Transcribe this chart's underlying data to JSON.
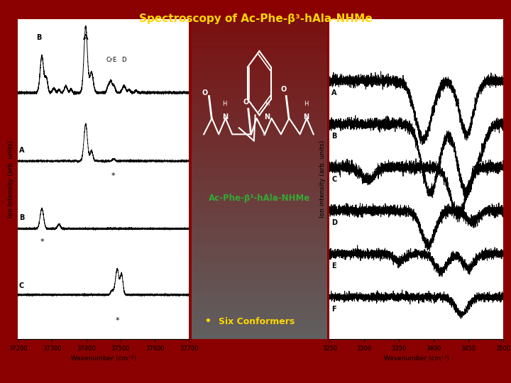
{
  "title": "Spectroscopy of Ac-Phe-β³-hAla-NHMe",
  "title_color": "#FFD700",
  "bg_color": "#8B0000",
  "middle_bg_top": "#7A1010",
  "middle_bg_bot": "#606060",
  "molecule_label": "Ac-Phe-β³-hAla-NHMe",
  "molecule_label_color": "#33AA33",
  "bullet_text": "Six Conformers",
  "bullet_color": "#FFD700",
  "bullet_text_color": "#FFD700",
  "left_panel": {
    "xlabel": "Wavenumber (cm⁻¹)",
    "ylabel": "Ion Intensity (arb. units)",
    "xmin": 37200,
    "xmax": 37700,
    "xticks": [
      37200,
      37300,
      37400,
      37500,
      37600,
      37700
    ]
  },
  "right_panel": {
    "xlabel": "Wavenumber (cm⁻¹)",
    "ylabel": "Ion intensity (arb. units)",
    "xmin": 3250,
    "xmax": 3500,
    "xticks": [
      3250,
      3300,
      3350,
      3400,
      3450,
      3500
    ]
  }
}
